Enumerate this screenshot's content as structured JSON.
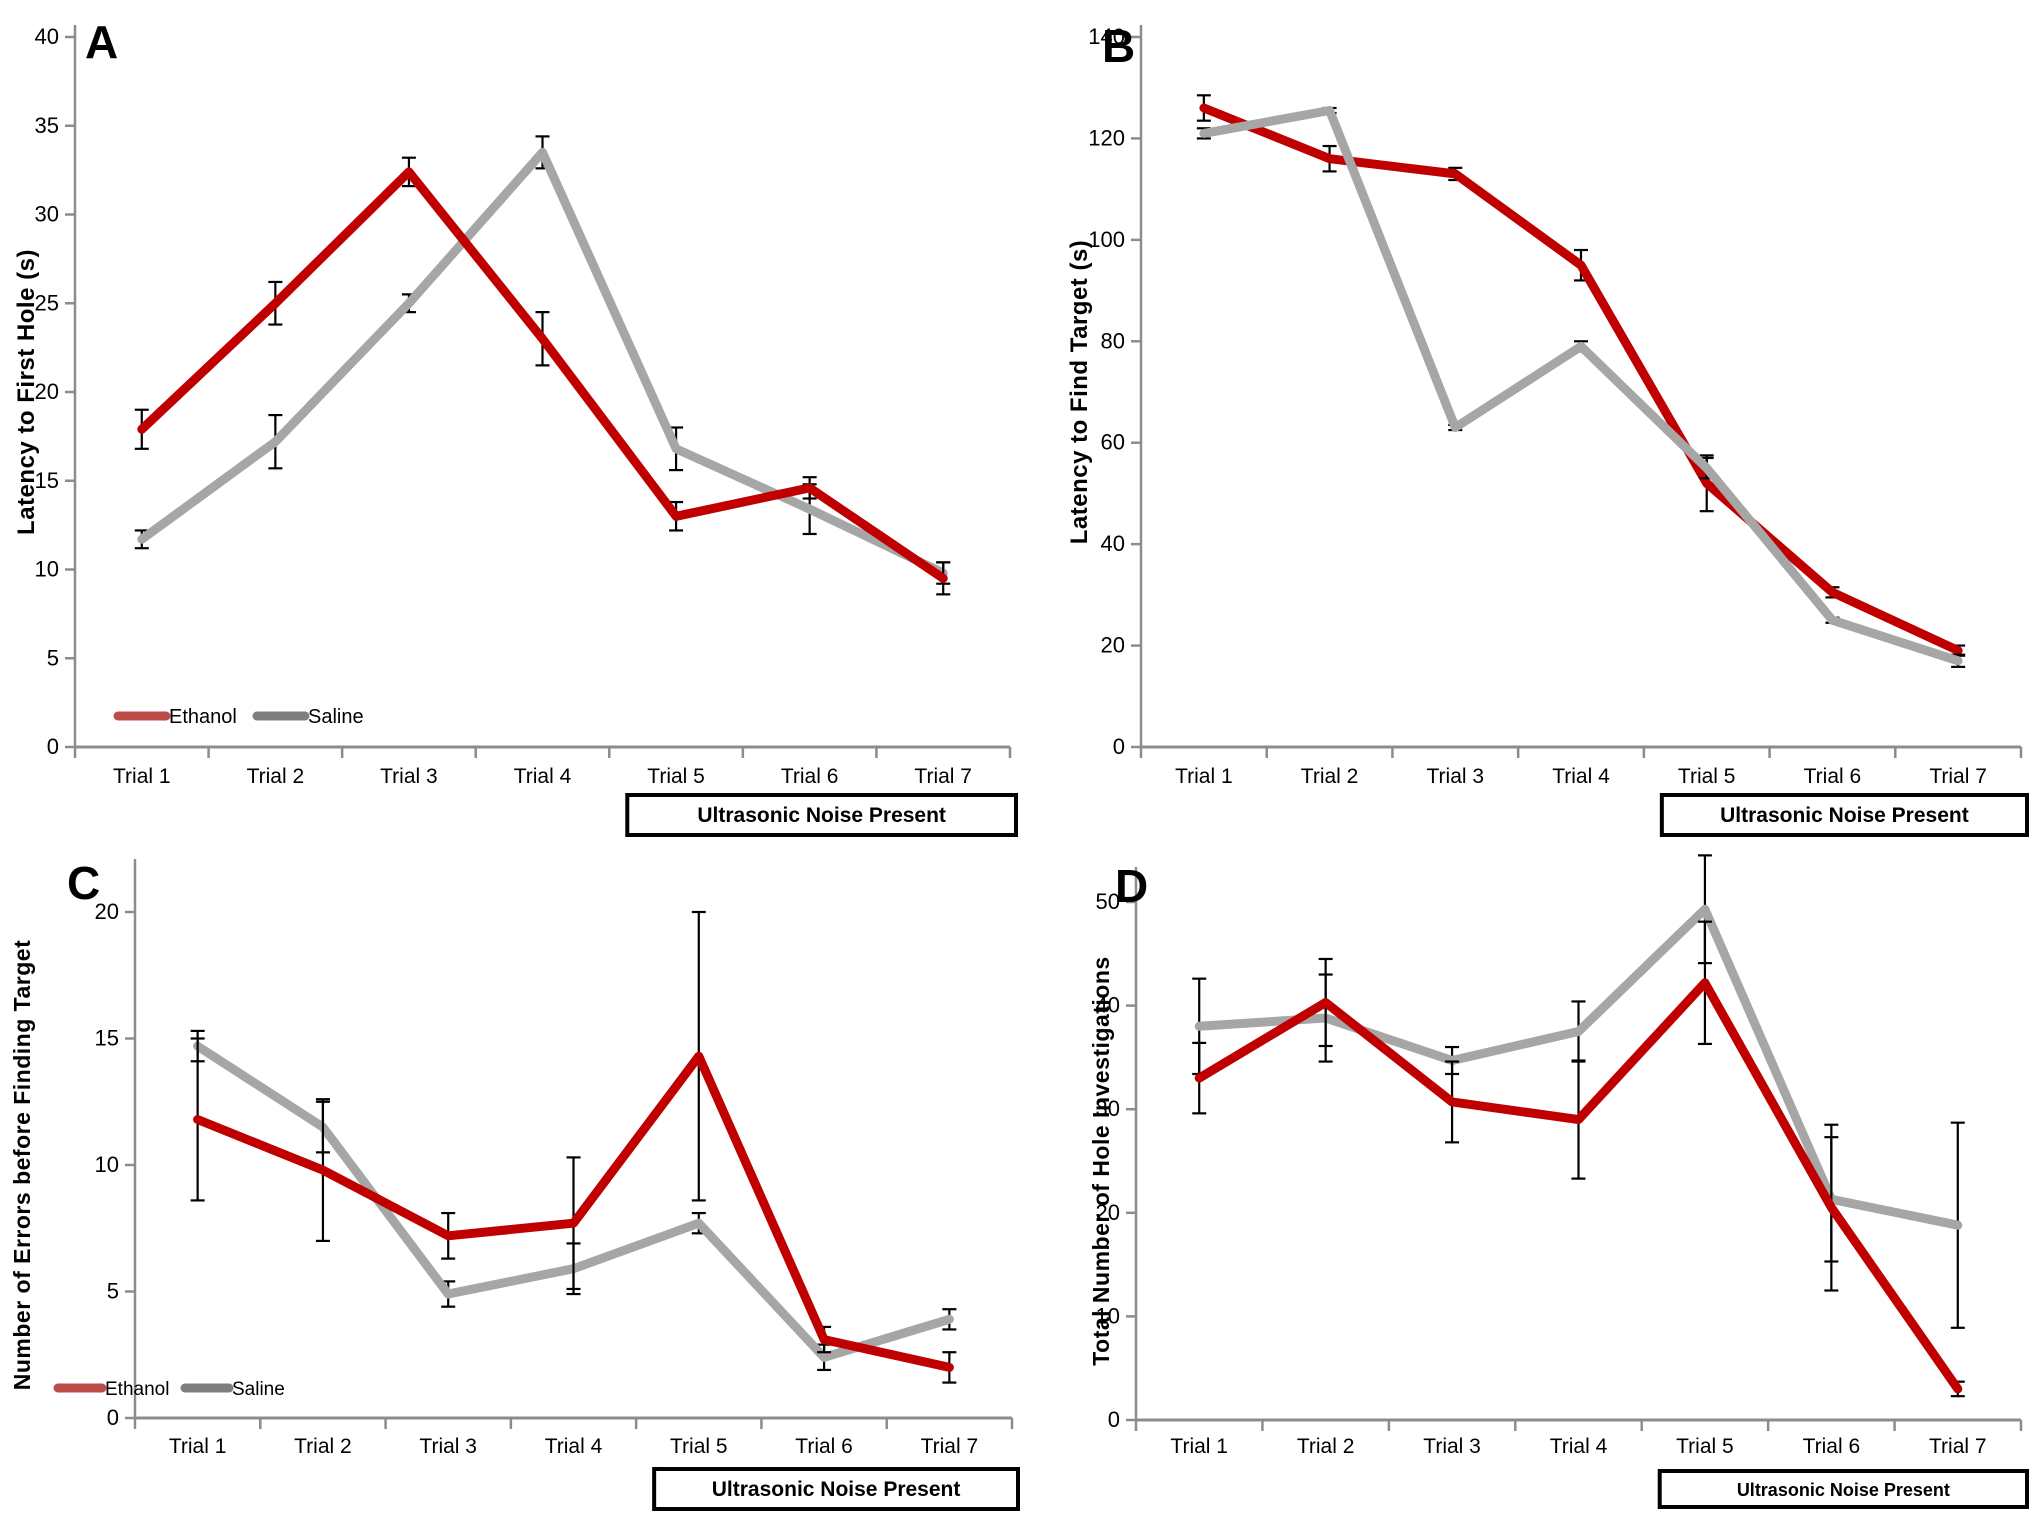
{
  "figure": {
    "description": "Four-panel line chart figure (A–D) comparing Ethanol vs Saline groups across 7 trials",
    "noise_annotation": "Ultrasonic Noise Present",
    "legend": {
      "ethanol": "Ethanol",
      "saline": "Saline"
    }
  },
  "colors": {
    "ethanol": "#C00000",
    "saline": "#A6A6A6",
    "legend_ethanol": "#BE4B48",
    "legend_saline": "#7F7F7F",
    "error_bar": "#000000",
    "axis": "#8C8C8C",
    "text": "#000000",
    "annotation_border": "#000000"
  },
  "categories": [
    "Trial 1",
    "Trial 2",
    "Trial 3",
    "Trial 4",
    "Trial 5",
    "Trial 6",
    "Trial 7"
  ],
  "chart_data": [
    {
      "panel": "A",
      "type": "line",
      "ylabel": "Latency to First Hole (s)",
      "xlabel": "",
      "ylim": [
        0,
        40
      ],
      "ytick_step": 5,
      "grid": false,
      "legend_visible": true,
      "legend_position": "inside-bottom-left",
      "annotation": "Ultrasonic Noise Present",
      "annotation_span": [
        "Trial 5",
        "Trial 7"
      ],
      "categories": [
        "Trial 1",
        "Trial 2",
        "Trial 3",
        "Trial 4",
        "Trial 5",
        "Trial 6",
        "Trial 7"
      ],
      "series": [
        {
          "name": "Ethanol",
          "color_key": "ethanol",
          "values": [
            17.9,
            25.0,
            32.4,
            23.0,
            13.0,
            14.6,
            9.5
          ],
          "errors": [
            1.1,
            1.2,
            0.8,
            1.5,
            0.8,
            0.6,
            0.9
          ]
        },
        {
          "name": "Saline",
          "color_key": "saline",
          "values": [
            11.7,
            17.2,
            25.0,
            33.5,
            16.8,
            13.4,
            9.8
          ],
          "errors": [
            0.5,
            1.5,
            0.5,
            0.9,
            1.2,
            1.4,
            0.6
          ]
        }
      ]
    },
    {
      "panel": "B",
      "type": "line",
      "ylabel": "Latency to Find Target (s)",
      "xlabel": "",
      "ylim": [
        0,
        140
      ],
      "ytick_step": 20,
      "grid": false,
      "legend_visible": false,
      "legend_position": null,
      "annotation": "Ultrasonic Noise Present",
      "annotation_span": [
        "Trial 5",
        "Trial 7"
      ],
      "categories": [
        "Trial 1",
        "Trial 2",
        "Trial 3",
        "Trial 4",
        "Trial 5",
        "Trial 6",
        "Trial 7"
      ],
      "series": [
        {
          "name": "Ethanol",
          "color_key": "ethanol",
          "values": [
            126,
            116,
            113,
            95,
            52,
            30.5,
            19
          ],
          "errors": [
            2.5,
            2.5,
            1.2,
            3,
            5.5,
            1,
            1
          ]
        },
        {
          "name": "Saline",
          "color_key": "saline",
          "values": [
            121,
            125.5,
            63,
            79,
            55,
            25,
            17
          ],
          "errors": [
            1,
            0.5,
            0.5,
            1,
            2,
            0.5,
            1.2
          ]
        }
      ]
    },
    {
      "panel": "C",
      "type": "line",
      "ylabel": "Number of Errors before Finding Target",
      "xlabel": "",
      "ylim": [
        0,
        20
      ],
      "ytick_step": 5,
      "grid": false,
      "legend_visible": true,
      "legend_position": "inside-bottom-left",
      "annotation": "Ultrasonic Noise Present",
      "annotation_span": [
        "Trial 5",
        "Trial 7"
      ],
      "categories": [
        "Trial 1",
        "Trial 2",
        "Trial 3",
        "Trial 4",
        "Trial 5",
        "Trial 6",
        "Trial 7"
      ],
      "series": [
        {
          "name": "Ethanol",
          "color_key": "ethanol",
          "values": [
            11.8,
            9.8,
            7.2,
            7.7,
            14.3,
            3.1,
            2.0
          ],
          "errors": [
            3.2,
            2.8,
            0.9,
            2.6,
            5.7,
            0.5,
            0.6
          ]
        },
        {
          "name": "Saline",
          "color_key": "saline",
          "values": [
            14.7,
            11.5,
            4.9,
            5.9,
            7.7,
            2.4,
            3.9
          ],
          "errors": [
            0.6,
            1.0,
            0.5,
            1.0,
            0.4,
            0.5,
            0.4
          ]
        }
      ]
    },
    {
      "panel": "D",
      "type": "line",
      "ylabel": "Total Number of Hole Investigations",
      "xlabel": "",
      "ylim": [
        0,
        55
      ],
      "ytick_step": 10,
      "ytick_max_label": 50,
      "grid": false,
      "legend_visible": false,
      "legend_position": null,
      "annotation": "Ultrasonic Noise Present",
      "annotation_span": [
        "Trial 5",
        "Trial 7"
      ],
      "categories": [
        "Trial 1",
        "Trial 2",
        "Trial 3",
        "Trial 4",
        "Trial 5",
        "Trial 6",
        "Trial 7"
      ],
      "series": [
        {
          "name": "Ethanol",
          "color_key": "ethanol",
          "values": [
            33,
            40.3,
            30.7,
            29,
            42.2,
            20.5,
            3
          ],
          "errors": [
            3.4,
            4.2,
            3.9,
            5.7,
            5.9,
            8,
            0.7
          ]
        },
        {
          "name": "Saline",
          "color_key": "saline",
          "values": [
            38,
            38.8,
            34.7,
            37.5,
            49.3,
            21.3,
            18.8
          ],
          "errors": [
            4.6,
            4.2,
            1.3,
            2.9,
            5.2,
            6,
            9.9
          ]
        }
      ]
    }
  ]
}
